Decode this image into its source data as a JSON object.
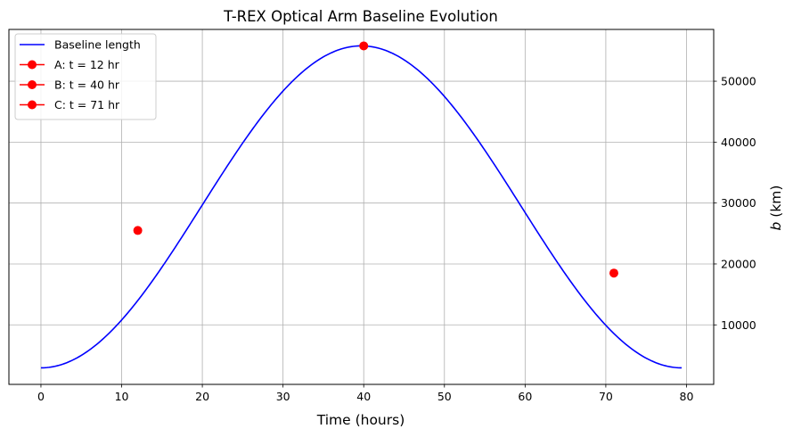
{
  "chart_data": {
    "type": "line",
    "title": "T-REX Optical Arm Baseline Evolution",
    "xlabel": "Time (hours)",
    "ylabel": "b (km)",
    "xlim": [
      -3.97,
      83.37
    ],
    "ylim": [
      231,
      58500
    ],
    "xticks": [
      0,
      10,
      20,
      30,
      40,
      50,
      60,
      70,
      80
    ],
    "yticks": [
      10000,
      20000,
      30000,
      40000,
      50000
    ],
    "yaxis_side": "right",
    "grid": true,
    "legend_position": "top-left",
    "series": [
      {
        "name": "Baseline length",
        "color": "#0000ff",
        "curve": {
          "t_min": 0,
          "t_max": 79.4,
          "b_min": 2950,
          "b_max": 55800
        }
      }
    ],
    "points": [
      {
        "label": "A",
        "t": 12,
        "b": 25500,
        "legend": "A: t = 12 hr",
        "color": "#ff0000"
      },
      {
        "label": "B",
        "t": 40,
        "b": 55800,
        "legend": "B: t = 40 hr",
        "color": "#ff0000"
      },
      {
        "label": "C",
        "t": 71,
        "b": 18500,
        "legend": "C: t = 71 hr",
        "color": "#ff0000"
      }
    ]
  }
}
